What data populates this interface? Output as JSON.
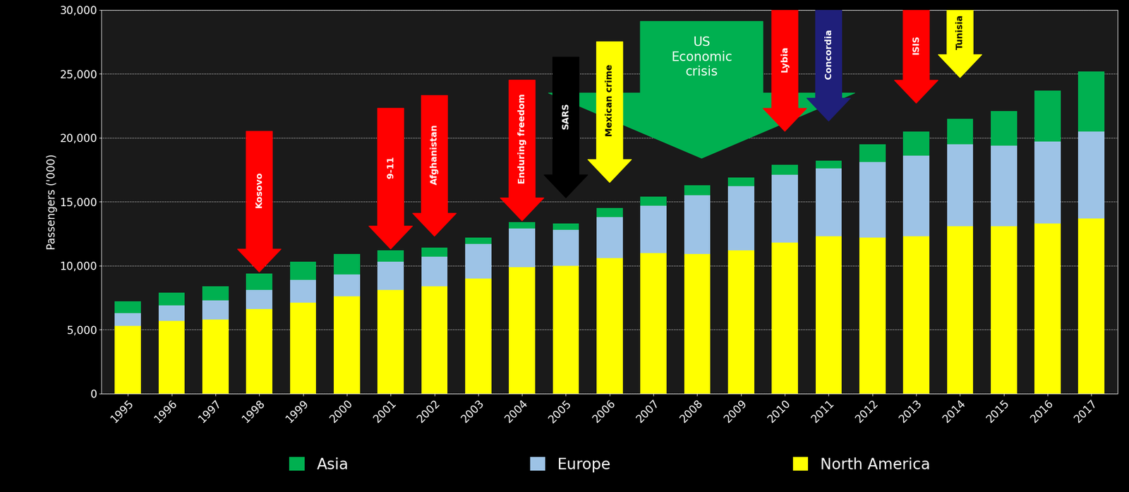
{
  "chart_data": {
    "type": "bar",
    "stacked": true,
    "grid": true,
    "legend": "bottom",
    "y_label": "Passengers ('000)",
    "categories": [
      "1995",
      "1996",
      "1997",
      "1998",
      "1999",
      "2000",
      "2001",
      "2002",
      "2003",
      "2004",
      "2005",
      "2006",
      "2007",
      "2008",
      "2009",
      "2010",
      "2011",
      "2012",
      "2013",
      "2014",
      "2015",
      "2016",
      "2017"
    ],
    "series": [
      {
        "name": "North America",
        "color": "#ffff00",
        "values": [
          5300,
          5700,
          5800,
          6600,
          7100,
          7600,
          8100,
          8400,
          9000,
          9900,
          10000,
          10600,
          11000,
          10900,
          11200,
          11800,
          12300,
          12200,
          12300,
          13100,
          13100,
          13300,
          13700
        ]
      },
      {
        "name": "Europe",
        "color": "#9dc3e6",
        "values": [
          1000,
          1200,
          1500,
          1500,
          1800,
          1700,
          2200,
          2300,
          2700,
          3000,
          2800,
          3200,
          3700,
          4600,
          5000,
          5300,
          5300,
          5900,
          6300,
          6400,
          6300,
          6400,
          6800
        ]
      },
      {
        "name": "Asia",
        "color": "#00b050",
        "values": [
          900,
          1000,
          1100,
          1300,
          1400,
          1600,
          900,
          700,
          500,
          500,
          500,
          700,
          700,
          800,
          700,
          800,
          600,
          1400,
          1900,
          2000,
          2700,
          4000,
          4700
        ]
      }
    ],
    "ylim": [
      0,
      30000
    ],
    "yticks": [
      0,
      {
        "value": 5000,
        "label": "5,000"
      },
      {
        "value": 10000,
        "label": "10,000"
      },
      {
        "value": 15000,
        "label": "15,000"
      },
      {
        "value": 20000,
        "label": "20,000"
      },
      {
        "value": 25000,
        "label": "25,000"
      },
      {
        "value": 30000,
        "label": "30,000"
      }
    ],
    "annotations": [
      {
        "text": "US Economic crisis",
        "x": "2008",
        "y": 18400,
        "color": "#00b050"
      },
      {
        "text": "Kosovo",
        "x": "1998",
        "y": 9500,
        "color": "#ff0000"
      },
      {
        "text": "9-11",
        "x": "2001",
        "y": 11300,
        "color": "#ff0000"
      },
      {
        "text": "Afghanistan",
        "x": "2002",
        "y": 12300,
        "color": "#ff0000"
      },
      {
        "text": "Enduring freedom",
        "x": "2004",
        "y": 13500,
        "color": "#ff0000"
      },
      {
        "text": "SARS",
        "x": "2005",
        "y": 15300,
        "color": "#000000"
      },
      {
        "text": "Mexican crime",
        "x": "2006",
        "y": 16500,
        "color": "#ffff00"
      },
      {
        "text": "Lybia",
        "x": "2010",
        "y": 20500,
        "color": "#ff0000"
      },
      {
        "text": "Concordia",
        "x": "2011",
        "y": 21300,
        "color": "#1f1f7a"
      },
      {
        "text": "ISIS",
        "x": "2013",
        "y": 22700,
        "color": "#ff0000"
      },
      {
        "text": "Tunisia",
        "x": "2014",
        "y": 24700,
        "color": "#ffff00"
      }
    ]
  }
}
